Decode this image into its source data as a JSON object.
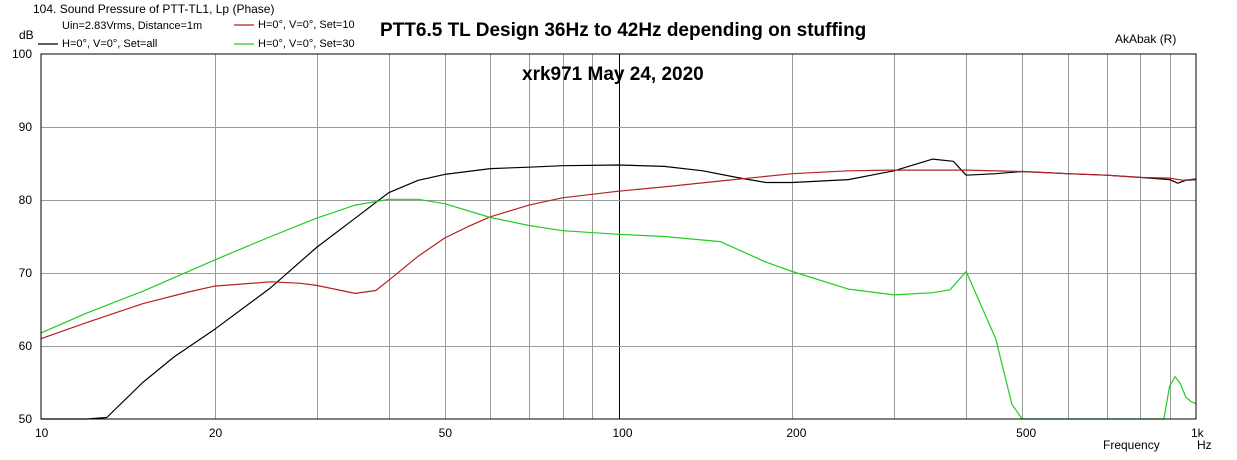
{
  "chart_data": {
    "type": "line",
    "window_label": "104. Sound Pressure of PTT-TL1, Lp (Phase)",
    "title": "PTT6.5 TL Design 36Hz to 42Hz depending on stuffing",
    "subtitle": "xrk971   May 24, 2020",
    "brand_label": "AkAbak (R)",
    "xlabel": "Frequency",
    "x_unit": "Hz",
    "ylabel": "dB",
    "condition_label": "Uin=2.83Vrms, Distance=1m",
    "xscale": "log",
    "xlim": [
      10,
      1000
    ],
    "ylim": [
      50,
      100
    ],
    "x_ticks": [
      {
        "value": 10,
        "label": "10"
      },
      {
        "value": 20,
        "label": "20"
      },
      {
        "value": 50,
        "label": "50"
      },
      {
        "value": 100,
        "label": "100"
      },
      {
        "value": 200,
        "label": "200"
      },
      {
        "value": 500,
        "label": "500"
      },
      {
        "value": 1000,
        "label": "1k"
      }
    ],
    "y_ticks": [
      {
        "value": 50,
        "label": "50"
      },
      {
        "value": 60,
        "label": "60"
      },
      {
        "value": 70,
        "label": "70"
      },
      {
        "value": 80,
        "label": "80"
      },
      {
        "value": 90,
        "label": "90"
      },
      {
        "value": 100,
        "label": "100"
      }
    ],
    "legend_position": "top-left",
    "series": [
      {
        "name": "H=0°, V=0°, Set=all",
        "color": "#000000",
        "x": [
          10,
          12,
          13,
          15,
          17,
          20,
          25,
          30,
          35,
          40,
          45,
          50,
          60,
          70,
          80,
          100,
          120,
          140,
          160,
          180,
          200,
          250,
          300,
          350,
          380,
          400,
          450,
          500,
          600,
          700,
          800,
          900,
          930,
          960,
          1000
        ],
        "y": [
          50,
          50,
          50.2,
          55,
          58.5,
          62.3,
          68,
          73.5,
          77.5,
          81,
          82.7,
          83.5,
          84.3,
          84.5,
          84.7,
          84.8,
          84.6,
          84,
          83.1,
          82.4,
          82.4,
          82.8,
          84,
          85.6,
          85.3,
          83.4,
          83.6,
          83.9,
          83.6,
          83.4,
          83.1,
          82.8,
          82.3,
          82.7,
          82.8
        ]
      },
      {
        "name": "H=0°, V=0°, Set=10",
        "color": "#b22222",
        "x": [
          10,
          12,
          15,
          18,
          20,
          25,
          28,
          30,
          35,
          38,
          40,
          45,
          50,
          55,
          60,
          70,
          80,
          100,
          120,
          150,
          200,
          250,
          300,
          400,
          500,
          600,
          700,
          800,
          900,
          950,
          1000
        ],
        "y": [
          61,
          63.2,
          65.8,
          67.4,
          68.2,
          68.8,
          68.6,
          68.3,
          67.2,
          67.6,
          69,
          72.3,
          74.8,
          76.4,
          77.7,
          79.3,
          80.3,
          81.2,
          81.8,
          82.6,
          83.6,
          84,
          84.1,
          84.1,
          83.9,
          83.6,
          83.4,
          83.1,
          83,
          82.7,
          82.9
        ]
      },
      {
        "name": "H=0°, V=0°, Set=30",
        "color": "#22cc22",
        "x": [
          10,
          12,
          15,
          20,
          25,
          30,
          35,
          40,
          45,
          50,
          60,
          70,
          80,
          100,
          120,
          150,
          180,
          200,
          250,
          300,
          350,
          375,
          400,
          450,
          480,
          500,
          600,
          700,
          800,
          880,
          900,
          920,
          940,
          960,
          980,
          1000
        ],
        "y": [
          61.8,
          64.5,
          67.5,
          71.8,
          75,
          77.5,
          79.3,
          80.1,
          80.1,
          79.5,
          77.6,
          76.5,
          75.8,
          75.3,
          75,
          74.3,
          71.5,
          70.2,
          67.8,
          67,
          67.3,
          67.7,
          70.2,
          61,
          52,
          50,
          50,
          50,
          50,
          50,
          54.5,
          55.8,
          54.8,
          53,
          52.4,
          52.1
        ]
      }
    ]
  }
}
